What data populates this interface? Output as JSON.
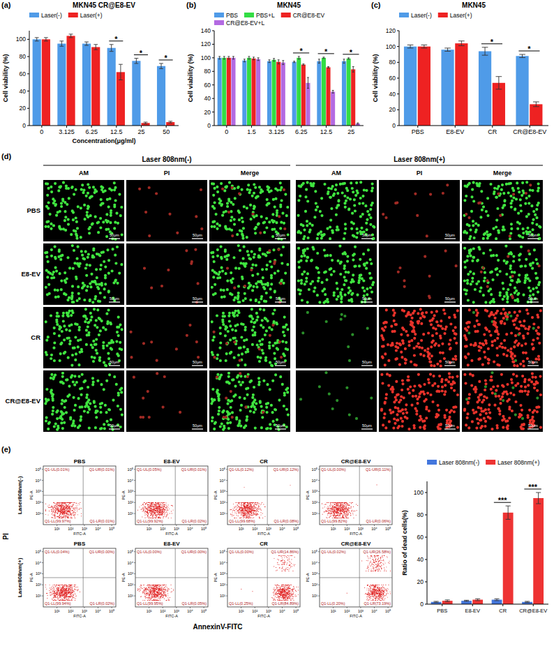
{
  "chart_data": [
    {
      "type": "bar",
      "panel_label": "(a)",
      "title": "MKN45 CR@E8-EV",
      "x_label": "Concentration(μg/ml)",
      "y_label": "Cell viability (%)",
      "categories": [
        "0",
        "3.125",
        "6.25",
        "12.5",
        "25",
        "50"
      ],
      "series": [
        {
          "name": "Laser(-)",
          "color": "#4f9be8",
          "values": [
            100,
            95,
            95,
            90,
            75,
            69
          ],
          "errors": [
            2,
            3,
            2,
            4,
            3,
            3
          ]
        },
        {
          "name": "Laser(+)",
          "color": "#ee2222",
          "values": [
            100,
            104,
            91,
            62,
            3,
            4
          ],
          "errors": [
            2,
            2,
            3,
            9,
            1,
            1
          ]
        }
      ],
      "ylim": [
        0,
        110
      ],
      "yticks": [
        0,
        20,
        40,
        60,
        80,
        100
      ],
      "legend": "top",
      "annotations": [
        {
          "text": "*",
          "category": "12.5"
        },
        {
          "text": "*",
          "category": "25"
        },
        {
          "text": "*",
          "category": "50"
        }
      ]
    },
    {
      "type": "bar",
      "panel_label": "(b)",
      "title": "MKN45",
      "y_label": "Cell viability (%)",
      "categories": [
        "0",
        "1.5",
        "3.125",
        "6.25",
        "12.5",
        "25"
      ],
      "series": [
        {
          "name": "PBS",
          "color": "#4f9be8",
          "values": [
            100,
            96,
            95,
            94,
            95,
            95
          ],
          "errors": [
            2,
            2,
            2,
            1,
            3,
            3
          ]
        },
        {
          "name": "PBS+L",
          "color": "#33dd44",
          "values": [
            100,
            100,
            97,
            100,
            100,
            99
          ],
          "errors": [
            2,
            2,
            2,
            2,
            1,
            1
          ]
        },
        {
          "name": "CR@E8-EV",
          "color": "#ee2222",
          "values": [
            100,
            99,
            94,
            90,
            86,
            83
          ],
          "errors": [
            2,
            2,
            3,
            1,
            1,
            4
          ]
        },
        {
          "name": "CR@E8-EV+L",
          "color": "#b36ae2",
          "values": [
            100,
            98,
            93,
            63,
            50,
            3
          ],
          "errors": [
            2,
            2,
            3,
            8,
            2,
            1
          ]
        }
      ],
      "ylim": [
        0,
        140
      ],
      "yticks": [
        0,
        20,
        40,
        60,
        80,
        100,
        120,
        140
      ],
      "legend": "top",
      "annotations": [
        {
          "text": "*",
          "category": "6.25"
        },
        {
          "text": "*",
          "category": "12.5"
        },
        {
          "text": "*",
          "category": "25"
        }
      ]
    },
    {
      "type": "bar",
      "panel_label": "(c)",
      "title": "MKN45",
      "y_label": "Cell viability (%)",
      "categories": [
        "PBS",
        "E8-EV",
        "CR",
        "CR@E8-EV"
      ],
      "series": [
        {
          "name": "Laser(-)",
          "color": "#4f9be8",
          "values": [
            100,
            96,
            94,
            88
          ],
          "errors": [
            2,
            2,
            5,
            2
          ]
        },
        {
          "name": "Laser(+)",
          "color": "#ee2222",
          "values": [
            100,
            104,
            54,
            27
          ],
          "errors": [
            2,
            3,
            8,
            3
          ]
        }
      ],
      "ylim": [
        0,
        120
      ],
      "yticks": [
        0,
        20,
        40,
        60,
        80,
        100,
        120
      ],
      "legend": "top",
      "annotations": [
        {
          "text": "*",
          "category": "CR"
        },
        {
          "text": "*",
          "category": "CR@E8-EV"
        }
      ]
    },
    {
      "type": "bar",
      "y_label": "Ratio of dead cells(%)",
      "categories": [
        "PBS",
        "E8-EV",
        "CR",
        "CR@E8-EV"
      ],
      "series": [
        {
          "name": "Laser 808nm(-)",
          "color": "#4477dd",
          "values": [
            2,
            3,
            4,
            2
          ],
          "errors": [
            0.5,
            0.5,
            0.8,
            0.5
          ]
        },
        {
          "name": "Laser 808nm(+)",
          "color": "#ee3333",
          "values": [
            3,
            4,
            82,
            95
          ],
          "errors": [
            0.8,
            0.8,
            6,
            5
          ]
        }
      ],
      "ylim": [
        0,
        110
      ],
      "yticks": [
        0,
        20,
        40,
        60,
        80,
        100
      ],
      "legend": "top",
      "annotations": [
        {
          "text": "***",
          "category": "CR"
        },
        {
          "text": "***",
          "category": "CR@E8-EV"
        }
      ]
    }
  ],
  "microscopy": {
    "panel_label": "(d)",
    "conditions": [
      "Laser 808nm(-)",
      "Laser 808nm(+)"
    ],
    "channels": [
      "AM",
      "PI",
      "Merge"
    ],
    "groups": [
      "PBS",
      "E8-EV",
      "CR",
      "CR@E8-EV"
    ],
    "scale_bar": "50μm"
  },
  "flow_cytometry": {
    "panel_label": "(e)",
    "x_label": "AnnexinV-FITC",
    "y_label": "PI",
    "plot_x_label": "FITC-A",
    "plot_y_label": "PE-A",
    "ticks": [
      "10¹",
      "10²",
      "10³",
      "10⁴",
      "10⁵"
    ],
    "rows": [
      {
        "label": "Laser808nm(-)",
        "plots": [
          {
            "title": "PBS",
            "values": [
              0.01,
              0.01,
              99.97,
              0.01
            ],
            "value_labels": [
              "Q1-UL(0.01%)",
              "Q1-UR(0.01%)",
              "Q1-LL(99.97%)",
              "Q1-LR(0.01%)"
            ]
          },
          {
            "title": "E8-EV",
            "values": [
              0.05,
              0.01,
              99.92,
              0.02
            ],
            "value_labels": [
              "Q1-UL(0.05%)",
              "Q1-UR(0.01%)",
              "Q1-LL(99.92%)",
              "Q1-LR(0.02%)"
            ]
          },
          {
            "title": "CR",
            "values": [
              0.12,
              0.12,
              99.68,
              0.08
            ],
            "value_labels": [
              "Q1-UL(0.12%)",
              "Q1-UR(0.12%)",
              "Q1-LL(99.68%)",
              "Q1-LR(0.08%)"
            ]
          },
          {
            "title": "CR@E8-EV",
            "values": [
              0,
              0.11,
              99.82,
              0.06
            ],
            "value_labels": [
              "Q1-UL(0.00%)",
              "Q1-UR(0.11%)",
              "Q1-LL(99.82%)",
              "Q1-LR(0.06%)"
            ]
          }
        ]
      },
      {
        "label": "Laser808nm(+)",
        "plots": [
          {
            "title": "PBS",
            "values": [
              0.04,
              0,
              99.94,
              0.02
            ],
            "value_labels": [
              "Q1-UL(0.04%)",
              "Q1-UR(0.00%)",
              "Q1-LL(99.94%)",
              "Q1-LR(0.02%)"
            ]
          },
          {
            "title": "E8-EV",
            "values": [
              0,
              0,
              99.95,
              0.05
            ],
            "value_labels": [
              "Q1-UL(0.00%)",
              "Q1-UR(0.00%)",
              "Q1-LL(99.95%)",
              "Q1-LR(0.05%)"
            ]
          },
          {
            "title": "CR",
            "values": [
              0,
              14.86,
              0.25,
              84.89
            ],
            "value_labels": [
              "Q1-UL(0.00%)",
              "Q1-UR(14.86%)",
              "Q1-LL(0.25%)",
              "Q1-LR(84.89%)"
            ]
          },
          {
            "title": "CR@E8-EV",
            "values": [
              0.02,
              26.58,
              0.2,
              73.19
            ],
            "value_labels": [
              "Q1-UL(0.02%)",
              "Q1-UR(26.58%)",
              "Q1-LL(0.20%)",
              "Q1-LR(73.19%)"
            ]
          }
        ]
      }
    ]
  }
}
